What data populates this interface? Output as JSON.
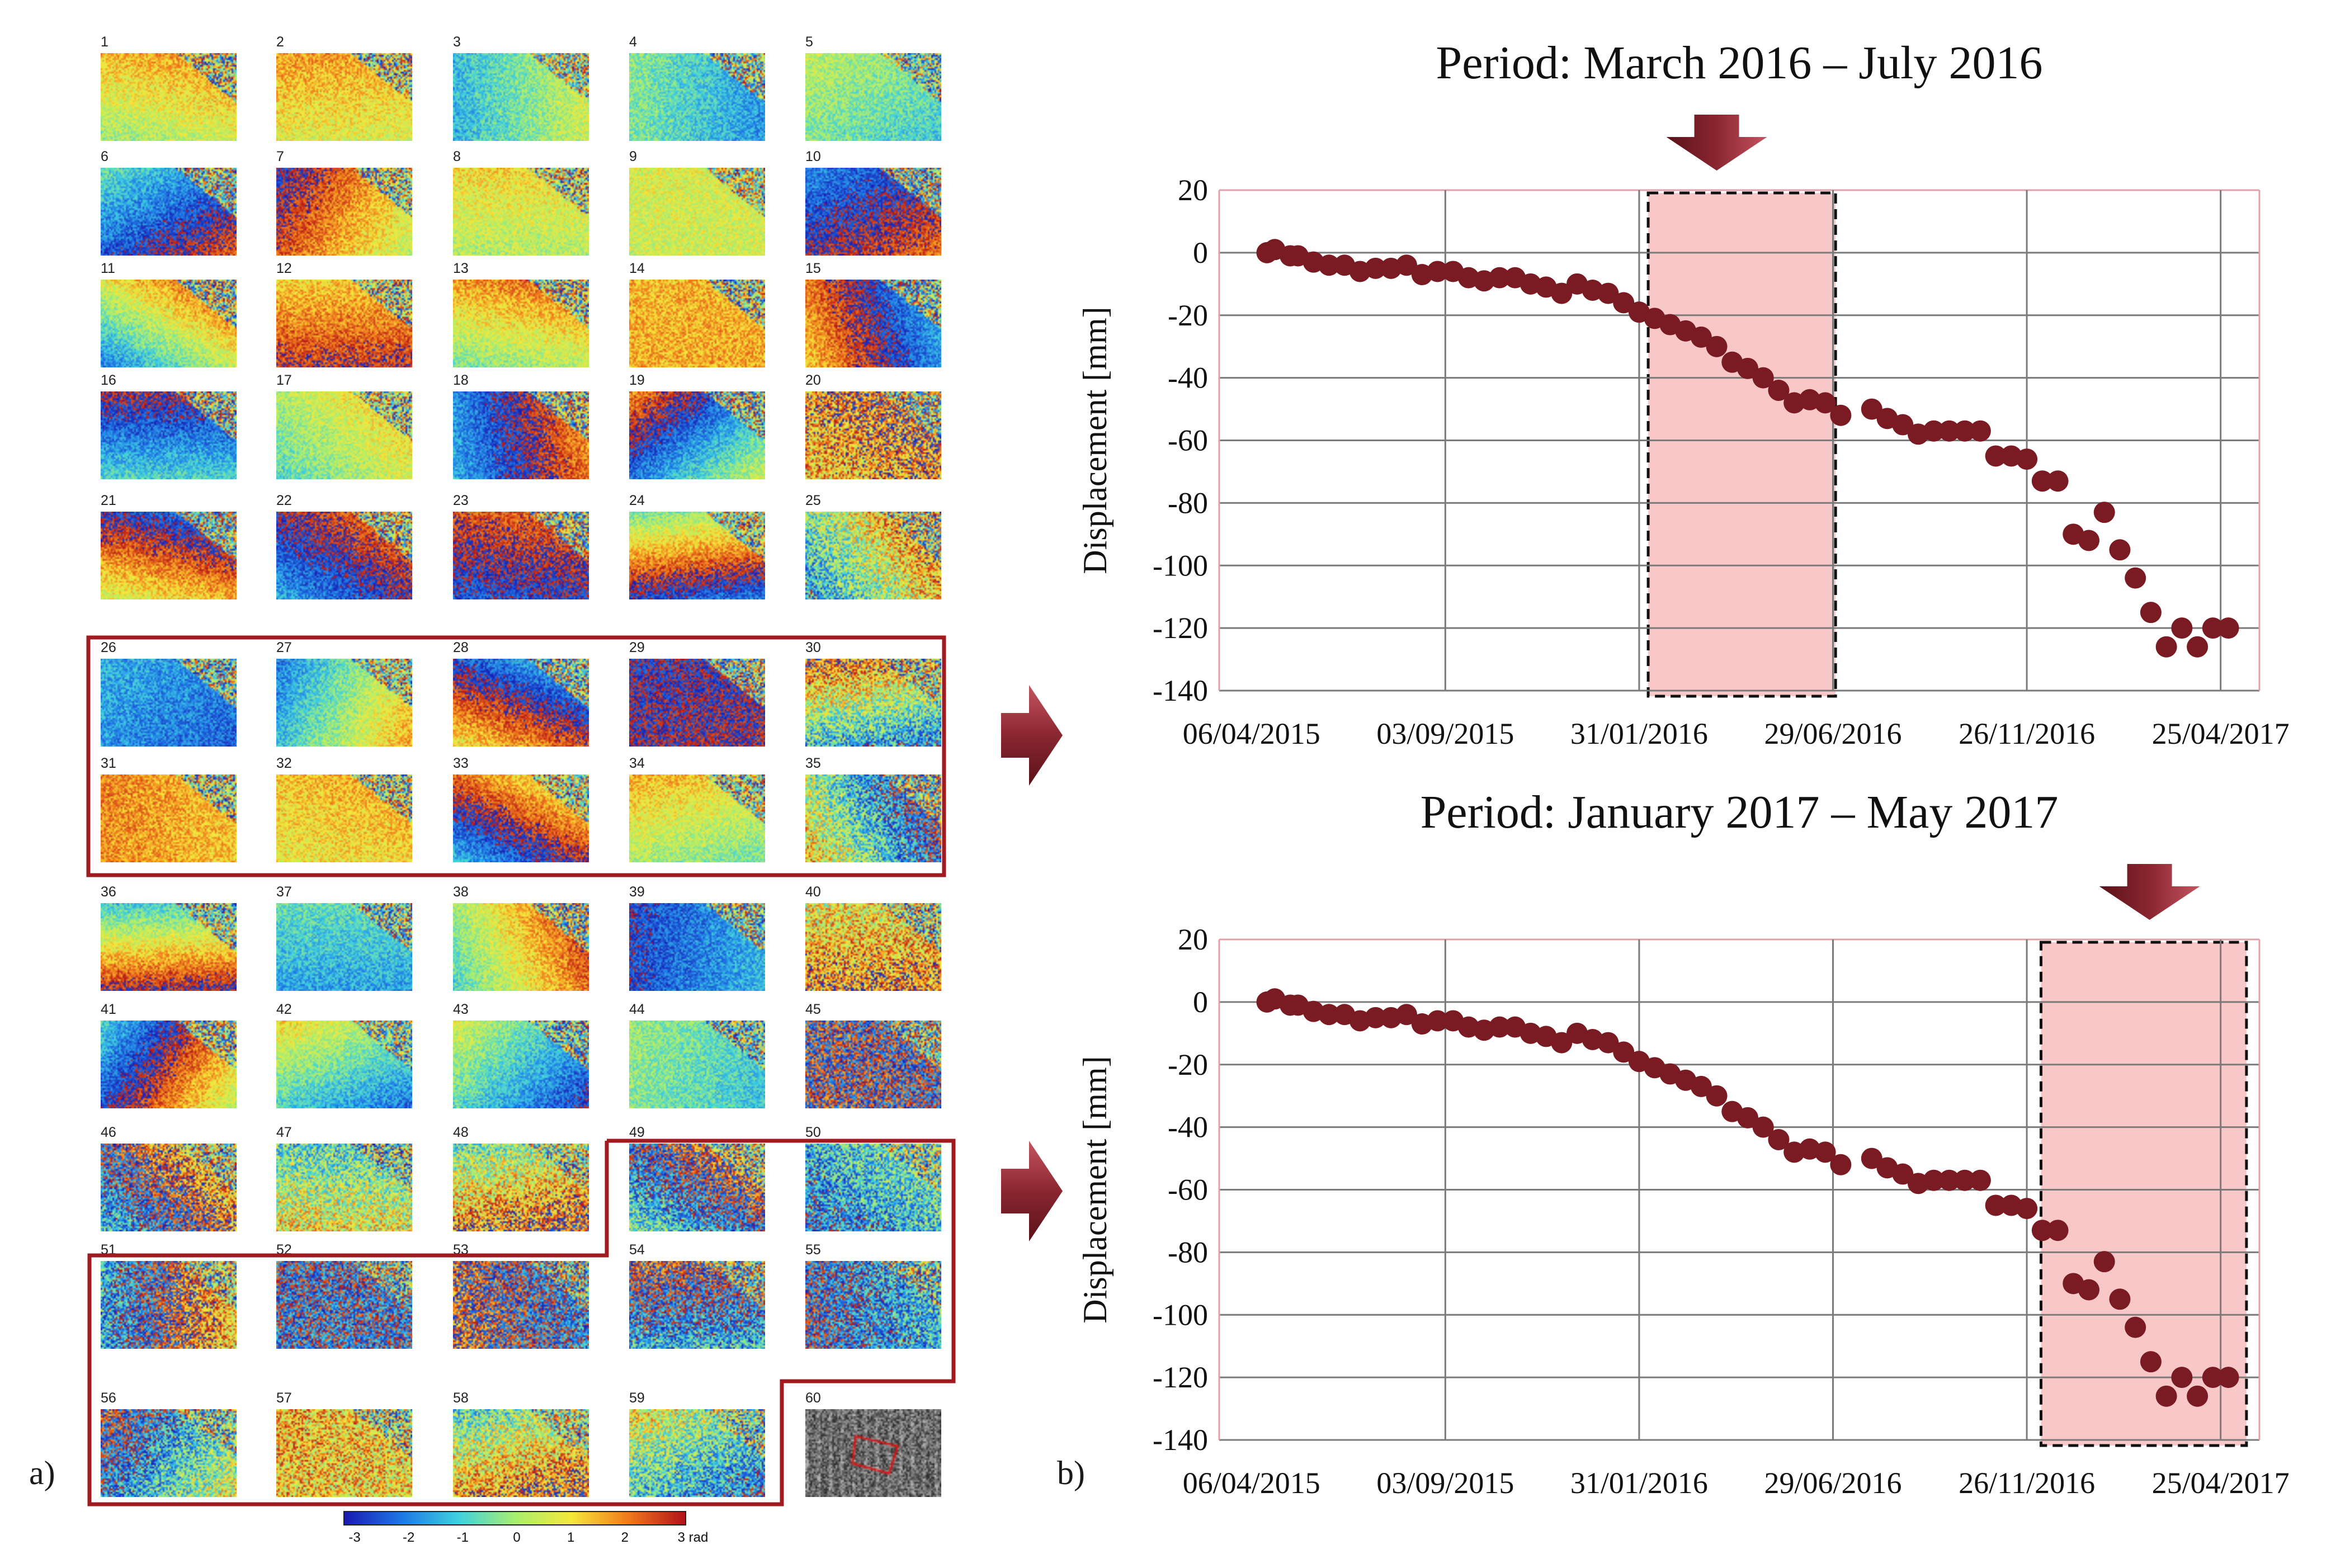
{
  "panel_a": {
    "label": "a)",
    "tile_numbers": [
      "1",
      "2",
      "3",
      "4",
      "5",
      "6",
      "7",
      "8",
      "9",
      "10",
      "11",
      "12",
      "13",
      "14",
      "15",
      "16",
      "17",
      "18",
      "19",
      "20",
      "21",
      "22",
      "23",
      "24",
      "25",
      "26",
      "27",
      "28",
      "29",
      "30",
      "31",
      "32",
      "33",
      "34",
      "35",
      "36",
      "37",
      "38",
      "39",
      "40",
      "41",
      "42",
      "43",
      "44",
      "45",
      "46",
      "47",
      "48",
      "49",
      "50",
      "51",
      "52",
      "53",
      "54",
      "55",
      "56",
      "57",
      "58",
      "59",
      "60"
    ],
    "colorbar": {
      "ticks": [
        "-3",
        "-2",
        "-1",
        "0",
        "1",
        "2",
        "3 rad"
      ],
      "colors": [
        "#1a1ab0",
        "#1f77e6",
        "#3fd0e0",
        "#a8ee70",
        "#f5e83a",
        "#f07a1c",
        "#b3121a"
      ]
    },
    "highlight_color": "#a01a1f"
  },
  "panel_b": {
    "label": "b)",
    "marker_color": "#7a1a22",
    "shade_color": "#f8c8c8",
    "arrow_color": "#8a2630"
  },
  "chart_data": [
    {
      "type": "scatter",
      "title": "Period: March 2016 – July 2016",
      "ylabel": "Displacement [mm]",
      "xlabel": "",
      "x_tick_labels": [
        "06/04/2015",
        "03/09/2015",
        "31/01/2016",
        "29/06/2016",
        "26/11/2016",
        "25/04/2017"
      ],
      "x_tick_days": [
        0,
        150,
        300,
        450,
        600,
        750
      ],
      "ylim": [
        -140,
        20
      ],
      "y_ticks": [
        "20",
        "0",
        "-20",
        "-40",
        "-60",
        "-80",
        "-100",
        "-120",
        "-140"
      ],
      "y_tick_values": [
        20,
        0,
        -20,
        -40,
        -60,
        -80,
        -100,
        -120,
        -140
      ],
      "grid": true,
      "highlight_period_days": [
        307,
        452
      ],
      "x_days": [
        12,
        18,
        30,
        36,
        48,
        60,
        72,
        84,
        96,
        108,
        120,
        132,
        144,
        156,
        168,
        180,
        192,
        204,
        216,
        228,
        240,
        252,
        264,
        276,
        288,
        300,
        312,
        324,
        336,
        348,
        360,
        372,
        384,
        396,
        408,
        420,
        432,
        444,
        456,
        480,
        492,
        504,
        516,
        528,
        540,
        552,
        564,
        576,
        588,
        600,
        612,
        624,
        636,
        648,
        660,
        672,
        684,
        696,
        708,
        720,
        732,
        744,
        756
      ],
      "y_values": [
        0,
        1,
        -1,
        -1,
        -3,
        -4,
        -4,
        -6,
        -5,
        -5,
        -4,
        -7,
        -6,
        -6,
        -8,
        -9,
        -8,
        -8,
        -10,
        -11,
        -13,
        -10,
        -12,
        -13,
        -16,
        -19,
        -21,
        -23,
        -25,
        -27,
        -30,
        -35,
        -37,
        -40,
        -44,
        -48,
        -47,
        -48,
        -52,
        -50,
        -53,
        -55,
        -58,
        -57,
        -57,
        -57,
        -57,
        -65,
        -65,
        -66,
        -73,
        -73,
        -90,
        -92,
        -83,
        -95,
        -104,
        -115,
        -126,
        -120,
        -126,
        -120,
        -120
      ]
    },
    {
      "type": "scatter",
      "title": "Period: January 2017 – May 2017",
      "ylabel": "Displacement [mm]",
      "xlabel": "",
      "x_tick_labels": [
        "06/04/2015",
        "03/09/2015",
        "31/01/2016",
        "29/06/2016",
        "26/11/2016",
        "25/04/2017"
      ],
      "x_tick_days": [
        0,
        150,
        300,
        450,
        600,
        750
      ],
      "ylim": [
        -140,
        20
      ],
      "y_ticks": [
        "20",
        "0",
        "-20",
        "-40",
        "-60",
        "-80",
        "-100",
        "-120",
        "-140"
      ],
      "y_tick_values": [
        20,
        0,
        -20,
        -40,
        -60,
        -80,
        -100,
        -120,
        -140
      ],
      "grid": true,
      "highlight_period_days": [
        611,
        770
      ],
      "x_days": [
        12,
        18,
        30,
        36,
        48,
        60,
        72,
        84,
        96,
        108,
        120,
        132,
        144,
        156,
        168,
        180,
        192,
        204,
        216,
        228,
        240,
        252,
        264,
        276,
        288,
        300,
        312,
        324,
        336,
        348,
        360,
        372,
        384,
        396,
        408,
        420,
        432,
        444,
        456,
        480,
        492,
        504,
        516,
        528,
        540,
        552,
        564,
        576,
        588,
        600,
        612,
        624,
        636,
        648,
        660,
        672,
        684,
        696,
        708,
        720,
        732,
        744,
        756
      ],
      "y_values": [
        0,
        1,
        -1,
        -1,
        -3,
        -4,
        -4,
        -6,
        -5,
        -5,
        -4,
        -7,
        -6,
        -6,
        -8,
        -9,
        -8,
        -8,
        -10,
        -11,
        -13,
        -10,
        -12,
        -13,
        -16,
        -19,
        -21,
        -23,
        -25,
        -27,
        -30,
        -35,
        -37,
        -40,
        -44,
        -48,
        -47,
        -48,
        -52,
        -50,
        -53,
        -55,
        -58,
        -57,
        -57,
        -57,
        -57,
        -65,
        -65,
        -66,
        -73,
        -73,
        -90,
        -92,
        -83,
        -95,
        -104,
        -115,
        -126,
        -120,
        -126,
        -120,
        -120
      ]
    }
  ]
}
